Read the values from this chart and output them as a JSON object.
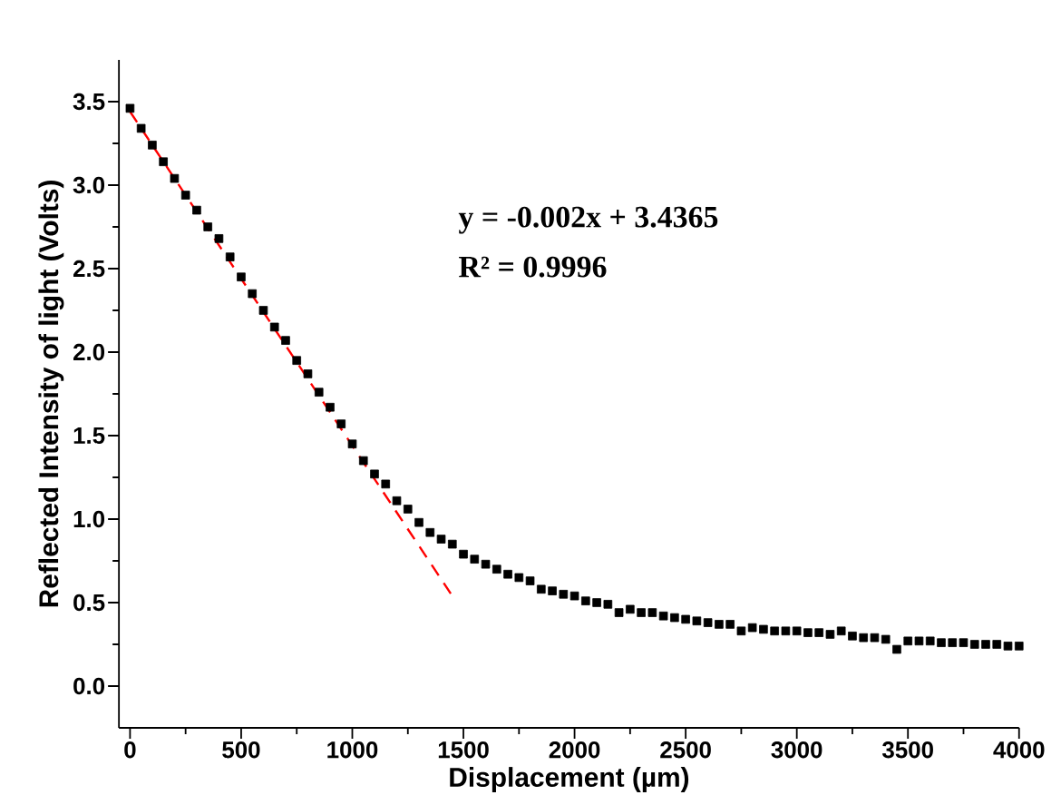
{
  "chart_data": {
    "type": "scatter",
    "xlabel": "Displacement (µm)",
    "ylabel": "Reflected Intensity of light (Volts)",
    "annotations": [
      "y = -0.002x + 3.4365",
      "R² = 0.9996"
    ],
    "xlim": [
      -50,
      4000
    ],
    "ylim": [
      -0.25,
      3.75
    ],
    "xticks": [
      0,
      {
        "value": 250,
        "label": null
      },
      500,
      {
        "value": 750,
        "label": null
      },
      1000,
      {
        "value": 1250,
        "label": null
      },
      1500,
      {
        "value": 1750,
        "label": null
      },
      2000,
      {
        "value": 2250,
        "label": null
      },
      2500,
      {
        "value": 2750,
        "label": null
      },
      3000,
      {
        "value": 3250,
        "label": null
      },
      3500,
      {
        "value": 3750,
        "label": null
      },
      4000
    ],
    "yticks": [
      {
        "value": 0,
        "label": "0.0"
      },
      {
        "value": 0.25,
        "label": null
      },
      0.5,
      {
        "value": 0.75,
        "label": null
      },
      {
        "value": 1,
        "label": "1.0"
      },
      {
        "value": 1.25,
        "label": null
      },
      1.5,
      {
        "value": 1.75,
        "label": null
      },
      {
        "value": 2,
        "label": "2.0"
      },
      {
        "value": 2.25,
        "label": null
      },
      2.5,
      {
        "value": 2.75,
        "label": null
      },
      {
        "value": 3,
        "label": "3.0"
      },
      {
        "value": 3.25,
        "label": null
      },
      3.5
    ],
    "grid": false,
    "marker": "square",
    "x": [
      0,
      50,
      100,
      150,
      200,
      250,
      300,
      350,
      400,
      450,
      500,
      550,
      600,
      650,
      700,
      750,
      800,
      850,
      900,
      950,
      1000,
      1050,
      1100,
      1150,
      1200,
      1250,
      1300,
      1350,
      1400,
      1450,
      1500,
      1550,
      1600,
      1650,
      1700,
      1750,
      1800,
      1850,
      1900,
      1950,
      2000,
      2050,
      2100,
      2150,
      2200,
      2250,
      2300,
      2350,
      2400,
      2450,
      2500,
      2550,
      2600,
      2650,
      2700,
      2750,
      2800,
      2850,
      2900,
      2950,
      3000,
      3050,
      3100,
      3150,
      3200,
      3250,
      3300,
      3350,
      3400,
      3450,
      3500,
      3550,
      3600,
      3650,
      3700,
      3750,
      3800,
      3850,
      3900,
      3950,
      4000
    ],
    "series": [
      {
        "color": "#000000",
        "values": [
          3.46,
          3.34,
          3.24,
          3.14,
          3.04,
          2.94,
          2.85,
          2.75,
          2.68,
          2.57,
          2.45,
          2.35,
          2.25,
          2.15,
          2.07,
          1.95,
          1.87,
          1.76,
          1.67,
          1.57,
          1.45,
          1.35,
          1.27,
          1.21,
          1.11,
          1.06,
          0.98,
          0.92,
          0.88,
          0.85,
          0.79,
          0.76,
          0.73,
          0.7,
          0.67,
          0.65,
          0.63,
          0.58,
          0.57,
          0.55,
          0.54,
          0.51,
          0.5,
          0.49,
          0.44,
          0.46,
          0.44,
          0.44,
          0.42,
          0.41,
          0.4,
          0.39,
          0.38,
          0.37,
          0.37,
          0.33,
          0.35,
          0.34,
          0.33,
          0.33,
          0.33,
          0.32,
          0.32,
          0.31,
          0.33,
          0.3,
          0.29,
          0.29,
          0.28,
          0.22,
          0.27,
          0.27,
          0.27,
          0.26,
          0.26,
          0.26,
          0.25,
          0.25,
          0.25,
          0.24,
          0.24
        ]
      },
      {
        "type": "line",
        "color": "#ff0000",
        "line_style": "dashed",
        "marker": "none",
        "x": [
          0,
          1450
        ],
        "values": [
          3.44,
          0.54
        ]
      }
    ]
  }
}
